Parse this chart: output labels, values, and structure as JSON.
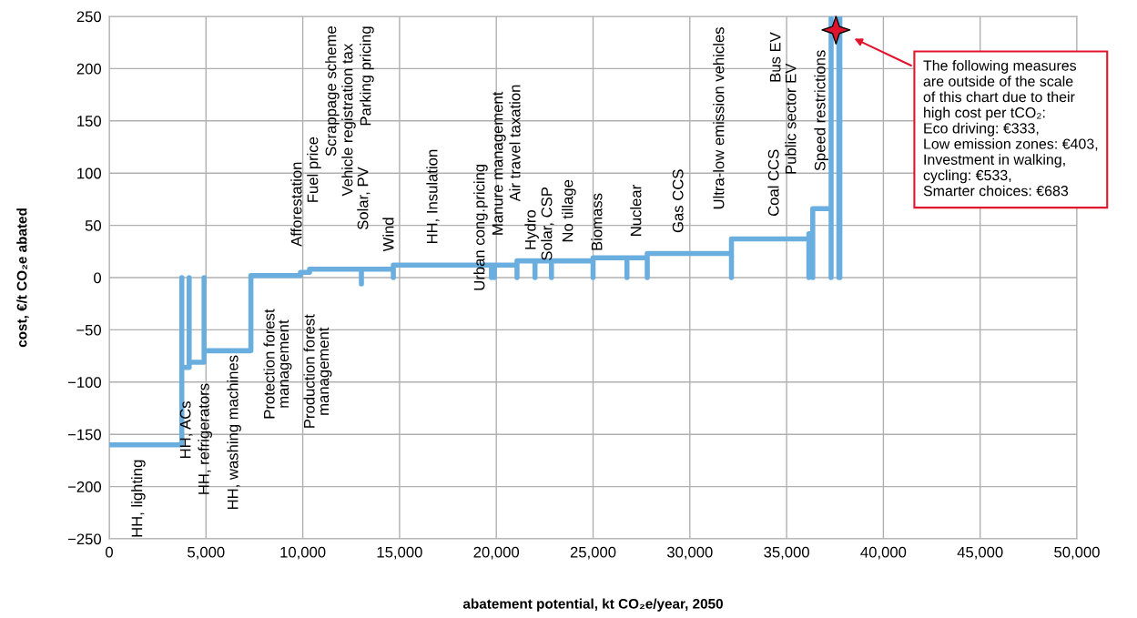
{
  "chart_data": {
    "type": "line",
    "xlabel": "abatement potential, kt CO₂e/year, 2050",
    "ylabel": "cost, €/t CO₂e abated",
    "series": [
      {
        "color": "#6aaee0",
        "x": [
          0,
          3750,
          3750,
          3750,
          4130,
          4130,
          4130,
          4900,
          4900,
          4900,
          7320,
          7320,
          9880,
          9880,
          10350,
          10350,
          13030,
          13030,
          13030,
          14680,
          14680,
          14680,
          19750,
          19750,
          19750,
          19900,
          19900,
          19900,
          21070,
          21070,
          21070,
          22000,
          22000,
          22000,
          22850,
          22850,
          22850,
          25000,
          25000,
          25000,
          26750,
          26750,
          26750,
          27800,
          27800,
          27800,
          32150,
          32150,
          32150,
          36150,
          36150,
          36150,
          36350,
          36350,
          36350,
          37300,
          37300,
          37300
        ],
        "values": [
          -160,
          -160,
          0,
          -86,
          -86,
          0,
          -81,
          -81,
          0,
          -70,
          -70,
          2,
          2,
          5,
          5,
          8,
          8,
          -6,
          8,
          8,
          0,
          12,
          12,
          0,
          12,
          12,
          0,
          12,
          12,
          0,
          16,
          16,
          0,
          16,
          16,
          0,
          16,
          16,
          0,
          19,
          19,
          0,
          19,
          19,
          0,
          23,
          23,
          0,
          37,
          37,
          0,
          42,
          42,
          0,
          66,
          66,
          0,
          250
        ]
      },
      {
        "color": "#6aaee0",
        "x": [
          37700,
          37700,
          37750,
          37750
        ],
        "values": [
          250,
          0,
          0,
          250
        ]
      }
    ],
    "xlim": [
      0,
      50000
    ],
    "xticks": [
      0,
      {
        "value": 5000,
        "label": "5,000"
      },
      {
        "value": 10000,
        "label": "10,000"
      },
      {
        "value": 15000,
        "label": "15,000"
      },
      {
        "value": 20000,
        "label": "20,000"
      },
      {
        "value": 25000,
        "label": "25,000"
      },
      {
        "value": 30000,
        "label": "30,000"
      },
      {
        "value": 35000,
        "label": "35,000"
      },
      {
        "value": 40000,
        "label": "40,000"
      },
      {
        "value": 45000,
        "label": "45,000"
      },
      {
        "value": 50000,
        "label": "50,000"
      }
    ],
    "ylim": [
      -250,
      250
    ],
    "yticks": [
      {
        "value": -250,
        "label": "−250"
      },
      {
        "value": -200,
        "label": "−200"
      },
      {
        "value": -150,
        "label": "−150"
      },
      {
        "value": -100,
        "label": "−100"
      },
      {
        "value": -50,
        "label": "−50"
      },
      0,
      50,
      100,
      150,
      200,
      250
    ],
    "grid": true,
    "annotations": [
      "HH, lighting",
      "HH, ACs",
      "HH, refrigerators",
      "HH, washing machines",
      "Protection forest\nmanagement",
      "Production forest\nmanagement",
      "Afforestation",
      "Fuel price",
      "Scrappage scheme",
      "Vehicle registration tax",
      "Parking pricing",
      "Solar, PV",
      "Wind",
      "HH, Insulation",
      "Urban cong.pricing",
      "Manure management",
      "Air travel taxation",
      "Hydro",
      "Solar, CSP",
      "No tillage",
      "Biomass",
      "Nuclear",
      "Gas CCS",
      "Ultra-low emission vehicles",
      "Coal CCS",
      "Bus EV",
      "Public sector EV",
      "Speed restrictions",
      "The following measures\nare outside of the scale\nof this chart due to their\nhigh cost per tCO₂:\nEco driving: €333,\nLow emission zones: €403,\nInvestment in walking,\ncycling: €533,\nSmarter choices: €683"
    ]
  }
}
